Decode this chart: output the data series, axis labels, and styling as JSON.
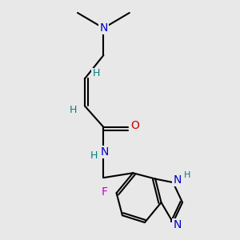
{
  "bg_color": "#e8e8e8",
  "atom_colors": {
    "N": "#0000cc",
    "O": "#cc0000",
    "F": "#cc00cc",
    "C": "#000000",
    "H": "#008080"
  },
  "bond_color": "#000000",
  "font_size": 9,
  "lw": 1.5
}
